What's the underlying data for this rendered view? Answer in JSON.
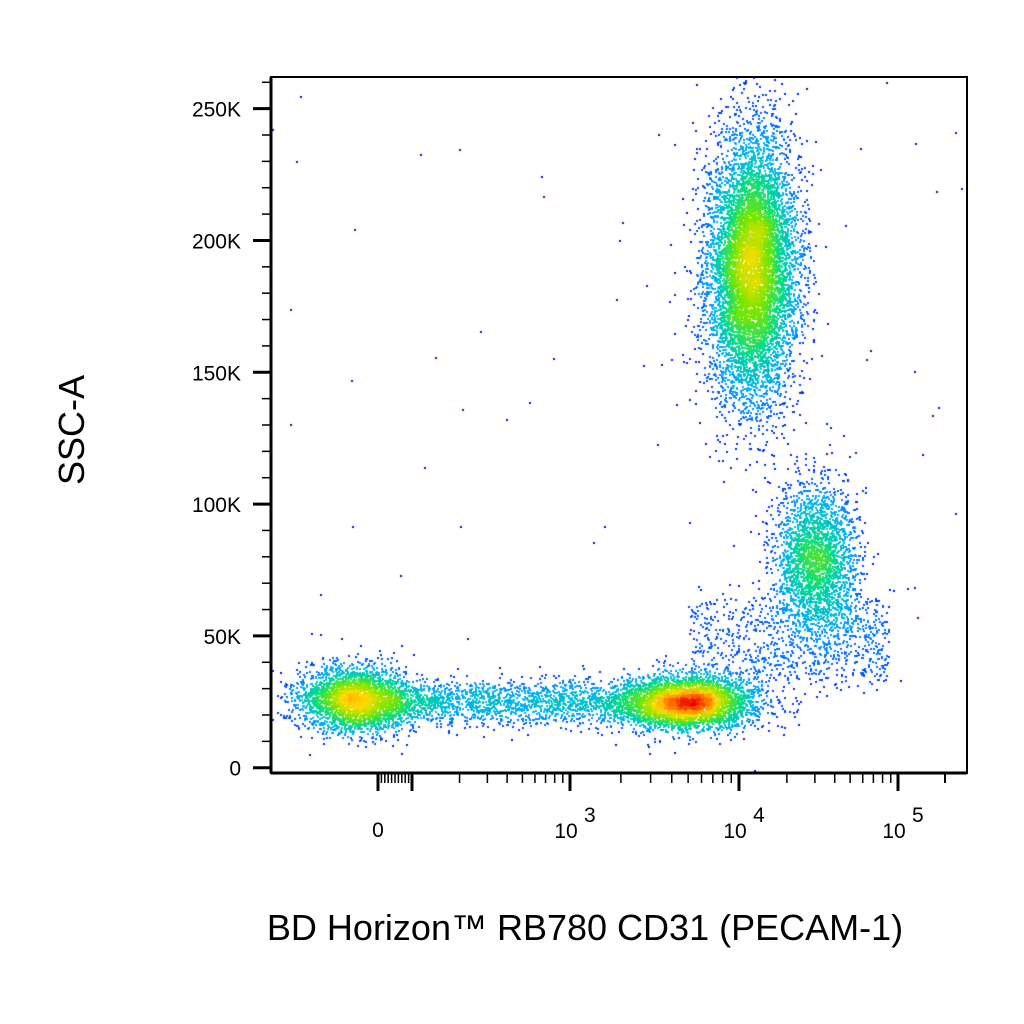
{
  "chart_data": {
    "type": "scatter",
    "title": "",
    "xlabel": "BD Horizon™ RB780 CD31 (PECAM-1)",
    "ylabel": "SSC-A",
    "x_scale": "biexponential",
    "y_scale": "linear",
    "xlim": [
      -300,
      200000
    ],
    "ylim": [
      -2000,
      262000
    ],
    "x_tick_labels": [
      {
        "value": 0,
        "base": "0",
        "exp": ""
      },
      {
        "value": 1000,
        "base": "10",
        "exp": "3"
      },
      {
        "value": 10000,
        "base": "10",
        "exp": "4"
      },
      {
        "value": 100000,
        "base": "10",
        "exp": "5"
      }
    ],
    "y_tick_labels": [
      {
        "value": 0,
        "label": "0"
      },
      {
        "value": 50000,
        "label": "50K"
      },
      {
        "value": 100000,
        "label": "100K"
      },
      {
        "value": 150000,
        "label": "150K"
      },
      {
        "value": 200000,
        "label": "200K"
      },
      {
        "value": 250000,
        "label": "250K"
      }
    ],
    "density_coloring": "pseudocolor (blue-cyan-green-yellow-red)",
    "grid": false,
    "legend": "none",
    "populations": [
      {
        "center_x": -30,
        "center_y": 26000,
        "sd_y": 6000,
        "count": 3200,
        "kind": "negative"
      },
      {
        "center_x": 5000,
        "center_y": 25000,
        "sd_y": 5000,
        "count": 3800,
        "kind": "dim"
      },
      {
        "center_x": 12000,
        "center_y": 190000,
        "sd_y": 25000,
        "count": 8500,
        "kind": "positive-high-ssc"
      },
      {
        "center_x": 30000,
        "center_y": 80000,
        "sd_y": 14000,
        "count": 2600,
        "kind": "positive-mid-ssc"
      }
    ]
  }
}
